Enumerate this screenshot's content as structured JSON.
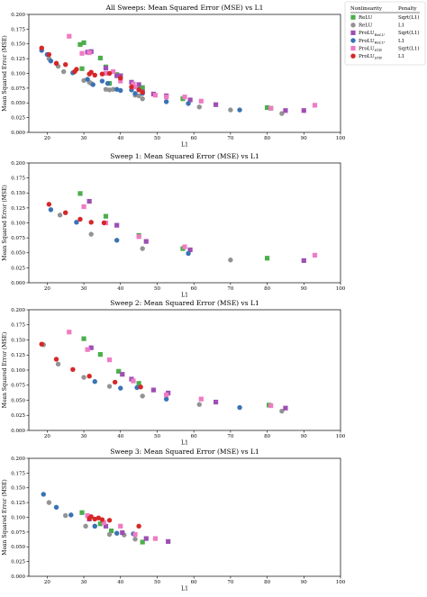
{
  "colors": {
    "relu_sqrt": "#4cae4c",
    "relu_l1": "#939393",
    "prolu_relu_sqrt": "#9e4fb3",
    "prolu_relu_l1": "#3a72b5",
    "prolu_ste_sqrt": "#f07bc4",
    "prolu_ste_l1": "#d62728"
  },
  "legend": {
    "header_nonlinearity": "Nonlinearity",
    "header_penalty": "Penalty",
    "entries": [
      {
        "label": "ReLU",
        "sub": "",
        "penalty": "Sqrt(L1)",
        "color_key": "relu_sqrt",
        "marker": "square"
      },
      {
        "label": "ReLU",
        "sub": "",
        "penalty": "L1",
        "color_key": "relu_l1",
        "marker": "circle"
      },
      {
        "label": "ProLU",
        "sub": "ReLU",
        "penalty": "Sqrt(L1)",
        "color_key": "prolu_relu_sqrt",
        "marker": "square"
      },
      {
        "label": "ProLU",
        "sub": "ReLU",
        "penalty": "L1",
        "color_key": "prolu_relu_l1",
        "marker": "circle"
      },
      {
        "label": "ProLU",
        "sub": "STE",
        "penalty": "Sqrt(L1)",
        "color_key": "prolu_ste_sqrt",
        "marker": "square"
      },
      {
        "label": "ProLU",
        "sub": "STE",
        "penalty": "L1",
        "color_key": "prolu_ste_l1",
        "marker": "circle"
      }
    ]
  },
  "chart_data": [
    {
      "type": "scatter",
      "title": "All Sweeps: Mean Squared Error (MSE) vs L1",
      "xlabel": "L1",
      "ylabel": "Mean Squared Error (MSE)",
      "xlim": [
        15,
        100
      ],
      "ylim": [
        0,
        0.2
      ],
      "xticks": [
        "20",
        "30",
        "40",
        "50",
        "60",
        "70",
        "80",
        "90",
        "100"
      ],
      "yticks": [
        "0.000",
        "0.025",
        "0.050",
        "0.075",
        "0.100",
        "0.125",
        "0.150",
        "0.175",
        "0.200"
      ],
      "series": [
        {
          "series_key": "relu_sqrt",
          "marker": "square",
          "points": [
            [
              29,
              0.149
            ],
            [
              30,
              0.152
            ],
            [
              29.5,
              0.108
            ],
            [
              34.5,
              0.126
            ],
            [
              36,
              0.111
            ],
            [
              37,
              0.083
            ],
            [
              39,
              0.098
            ],
            [
              40,
              0.095
            ],
            [
              45,
              0.075
            ],
            [
              46,
              0.076
            ],
            [
              57,
              0.057
            ],
            [
              80,
              0.042
            ],
            [
              81,
              0.041
            ]
          ]
        },
        {
          "series_key": "relu_l1",
          "marker": "circle",
          "points": [
            [
              20.5,
              0.125
            ],
            [
              23,
              0.112
            ],
            [
              24.5,
              0.103
            ],
            [
              30,
              0.088
            ],
            [
              31.5,
              0.085
            ],
            [
              32,
              0.083
            ],
            [
              36,
              0.073
            ],
            [
              37,
              0.072
            ],
            [
              38,
              0.073
            ],
            [
              44,
              0.063
            ],
            [
              45,
              0.062
            ],
            [
              46,
              0.057
            ],
            [
              61.5,
              0.043
            ],
            [
              70,
              0.038
            ],
            [
              84,
              0.032
            ]
          ]
        },
        {
          "series_key": "prolu_relu_sqrt",
          "marker": "square",
          "points": [
            [
              31,
              0.136
            ],
            [
              32,
              0.137
            ],
            [
              36,
              0.109
            ],
            [
              39,
              0.096
            ],
            [
              40,
              0.096
            ],
            [
              43,
              0.085
            ],
            [
              45,
              0.081
            ],
            [
              46,
              0.069
            ],
            [
              49,
              0.065
            ],
            [
              52.5,
              0.062
            ],
            [
              59,
              0.055
            ],
            [
              66,
              0.047
            ],
            [
              85,
              0.037
            ],
            [
              90,
              0.037
            ]
          ]
        },
        {
          "series_key": "prolu_relu_l1",
          "marker": "circle",
          "points": [
            [
              18.5,
              0.139
            ],
            [
              20,
              0.132
            ],
            [
              21,
              0.121
            ],
            [
              22.5,
              0.117
            ],
            [
              27,
              0.101
            ],
            [
              31,
              0.09
            ],
            [
              32.5,
              0.081
            ],
            [
              35,
              0.087
            ],
            [
              36.5,
              0.083
            ],
            [
              39,
              0.073
            ],
            [
              40,
              0.071
            ],
            [
              43,
              0.072
            ],
            [
              44,
              0.066
            ],
            [
              46,
              0.066
            ],
            [
              52.5,
              0.052
            ],
            [
              58.5,
              0.049
            ],
            [
              72.5,
              0.038
            ]
          ]
        },
        {
          "series_key": "prolu_ste_sqrt",
          "marker": "square",
          "points": [
            [
              26,
              0.163
            ],
            [
              29.5,
              0.134
            ],
            [
              31.5,
              0.135
            ],
            [
              36,
              0.1
            ],
            [
              38,
              0.103
            ],
            [
              40,
              0.087
            ],
            [
              43.5,
              0.082
            ],
            [
              44,
              0.077
            ],
            [
              49.5,
              0.063
            ],
            [
              52.5,
              0.06
            ],
            [
              57.5,
              0.06
            ],
            [
              62,
              0.053
            ],
            [
              81,
              0.041
            ],
            [
              93,
              0.046
            ]
          ]
        },
        {
          "series_key": "prolu_ste_l1",
          "marker": "circle",
          "points": [
            [
              18.5,
              0.143
            ],
            [
              20.5,
              0.132
            ],
            [
              22.5,
              0.117
            ],
            [
              25,
              0.115
            ],
            [
              27.5,
              0.103
            ],
            [
              28,
              0.107
            ],
            [
              31.5,
              0.099
            ],
            [
              32,
              0.102
            ],
            [
              33,
              0.097
            ],
            [
              35,
              0.099
            ],
            [
              37,
              0.1
            ],
            [
              40,
              0.092
            ],
            [
              43,
              0.077
            ],
            [
              45,
              0.072
            ],
            [
              46,
              0.068
            ]
          ]
        }
      ]
    },
    {
      "type": "scatter",
      "title": "Sweep 1: Mean Squared Error (MSE) vs L1",
      "xlabel": "L1",
      "ylabel": "Mean Squared Error (MSE)",
      "xlim": [
        15,
        100
      ],
      "ylim": [
        0,
        0.2
      ],
      "xticks": [
        "20",
        "30",
        "40",
        "50",
        "60",
        "70",
        "80",
        "90",
        "100"
      ],
      "yticks": [
        "0.000",
        "0.025",
        "0.050",
        "0.075",
        "0.100",
        "0.125",
        "0.150",
        "0.175",
        "0.200"
      ],
      "series": [
        {
          "series_key": "relu_sqrt",
          "marker": "square",
          "points": [
            [
              29,
              0.149
            ],
            [
              36,
              0.111
            ],
            [
              45,
              0.079
            ],
            [
              57,
              0.057
            ],
            [
              80,
              0.041
            ]
          ]
        },
        {
          "series_key": "relu_l1",
          "marker": "circle",
          "points": [
            [
              23.5,
              0.113
            ],
            [
              32,
              0.081
            ],
            [
              46,
              0.057
            ],
            [
              70,
              0.038
            ]
          ]
        },
        {
          "series_key": "prolu_relu_sqrt",
          "marker": "square",
          "points": [
            [
              31.5,
              0.136
            ],
            [
              39,
              0.096
            ],
            [
              47,
              0.069
            ],
            [
              59,
              0.055
            ],
            [
              90,
              0.037
            ]
          ]
        },
        {
          "series_key": "prolu_relu_l1",
          "marker": "circle",
          "points": [
            [
              21,
              0.122
            ],
            [
              28,
              0.101
            ],
            [
              39,
              0.071
            ],
            [
              58.5,
              0.049
            ]
          ]
        },
        {
          "series_key": "prolu_ste_sqrt",
          "marker": "square",
          "points": [
            [
              30,
              0.127
            ],
            [
              36,
              0.1
            ],
            [
              45,
              0.077
            ],
            [
              57.5,
              0.06
            ],
            [
              93,
              0.046
            ]
          ]
        },
        {
          "series_key": "prolu_ste_l1",
          "marker": "circle",
          "points": [
            [
              20.5,
              0.131
            ],
            [
              25,
              0.117
            ],
            [
              29,
              0.106
            ],
            [
              32,
              0.101
            ],
            [
              35.5,
              0.1
            ]
          ]
        }
      ]
    },
    {
      "type": "scatter",
      "title": "Sweep 2: Mean Squared Error (MSE) vs L1",
      "xlabel": "L1",
      "ylabel": "Mean Squared Error (MSE)",
      "xlim": [
        15,
        100
      ],
      "ylim": [
        0,
        0.2
      ],
      "xticks": [
        "20",
        "30",
        "40",
        "50",
        "60",
        "70",
        "80",
        "90",
        "100"
      ],
      "yticks": [
        "0.000",
        "0.025",
        "0.050",
        "0.075",
        "0.100",
        "0.125",
        "0.150",
        "0.175",
        "0.200"
      ],
      "series": [
        {
          "series_key": "relu_sqrt",
          "marker": "square",
          "points": [
            [
              30,
              0.152
            ],
            [
              34.5,
              0.126
            ],
            [
              39.5,
              0.098
            ],
            [
              45,
              0.078
            ],
            [
              80.5,
              0.042
            ]
          ]
        },
        {
          "series_key": "relu_l1",
          "marker": "circle",
          "points": [
            [
              19,
              0.142
            ],
            [
              23,
              0.11
            ],
            [
              30,
              0.088
            ],
            [
              37,
              0.073
            ],
            [
              46,
              0.057
            ],
            [
              61.5,
              0.043
            ],
            [
              84,
              0.032
            ]
          ]
        },
        {
          "series_key": "prolu_relu_sqrt",
          "marker": "square",
          "points": [
            [
              32,
              0.137
            ],
            [
              40.5,
              0.093
            ],
            [
              43,
              0.085
            ],
            [
              49,
              0.067
            ],
            [
              53,
              0.062
            ],
            [
              66,
              0.047
            ],
            [
              85,
              0.037
            ]
          ]
        },
        {
          "series_key": "prolu_relu_l1",
          "marker": "circle",
          "points": [
            [
              33,
              0.081
            ],
            [
              40,
              0.07
            ],
            [
              44.5,
              0.071
            ],
            [
              52.5,
              0.052
            ],
            [
              72.5,
              0.038
            ]
          ]
        },
        {
          "series_key": "prolu_ste_sqrt",
          "marker": "square",
          "points": [
            [
              26,
              0.163
            ],
            [
              31,
              0.134
            ],
            [
              37,
              0.117
            ],
            [
              43.5,
              0.082
            ],
            [
              52.5,
              0.059
            ],
            [
              62,
              0.052
            ],
            [
              81,
              0.041
            ]
          ]
        },
        {
          "series_key": "prolu_ste_l1",
          "marker": "circle",
          "points": [
            [
              18.5,
              0.143
            ],
            [
              22.5,
              0.118
            ],
            [
              27,
              0.101
            ],
            [
              31.5,
              0.09
            ],
            [
              38.5,
              0.08
            ],
            [
              45.5,
              0.072
            ]
          ]
        }
      ]
    },
    {
      "type": "scatter",
      "title": "Sweep 3: Mean Squared Error (MSE) vs L1",
      "xlabel": "L1",
      "ylabel": "Mean Squared Error (MSE)",
      "xlim": [
        15,
        100
      ],
      "ylim": [
        0,
        0.2
      ],
      "xticks": [
        "20",
        "30",
        "40",
        "50",
        "60",
        "70",
        "80",
        "90",
        "100"
      ],
      "yticks": [
        "0.000",
        "0.025",
        "0.050",
        "0.075",
        "0.100",
        "0.125",
        "0.150",
        "0.175",
        "0.200"
      ],
      "series": [
        {
          "series_key": "relu_sqrt",
          "marker": "square",
          "points": [
            [
              29.5,
              0.108
            ],
            [
              34.5,
              0.089
            ],
            [
              37.5,
              0.077
            ],
            [
              46,
              0.058
            ]
          ]
        },
        {
          "series_key": "relu_l1",
          "marker": "circle",
          "points": [
            [
              20.5,
              0.125
            ],
            [
              25,
              0.103
            ],
            [
              30.5,
              0.085
            ],
            [
              33,
              0.085
            ],
            [
              37,
              0.071
            ],
            [
              41,
              0.07
            ],
            [
              44,
              0.063
            ]
          ]
        },
        {
          "series_key": "prolu_relu_sqrt",
          "marker": "square",
          "points": [
            [
              31.5,
              0.097
            ],
            [
              36,
              0.085
            ],
            [
              40.5,
              0.074
            ],
            [
              47,
              0.064
            ],
            [
              53,
              0.059
            ]
          ]
        },
        {
          "series_key": "prolu_relu_l1",
          "marker": "circle",
          "points": [
            [
              19,
              0.139
            ],
            [
              22.5,
              0.117
            ],
            [
              26.5,
              0.104
            ],
            [
              33,
              0.085
            ],
            [
              39,
              0.073
            ],
            [
              43.5,
              0.072
            ]
          ]
        },
        {
          "series_key": "prolu_ste_sqrt",
          "marker": "square",
          "points": [
            [
              31,
              0.103
            ],
            [
              35.5,
              0.091
            ],
            [
              40,
              0.085
            ],
            [
              44,
              0.071
            ],
            [
              49.5,
              0.064
            ]
          ]
        },
        {
          "series_key": "prolu_ste_l1",
          "marker": "circle",
          "points": [
            [
              31.5,
              0.098
            ],
            [
              32,
              0.101
            ],
            [
              33,
              0.097
            ],
            [
              34,
              0.099
            ],
            [
              35,
              0.096
            ],
            [
              37,
              0.095
            ],
            [
              45,
              0.085
            ]
          ]
        }
      ]
    }
  ]
}
